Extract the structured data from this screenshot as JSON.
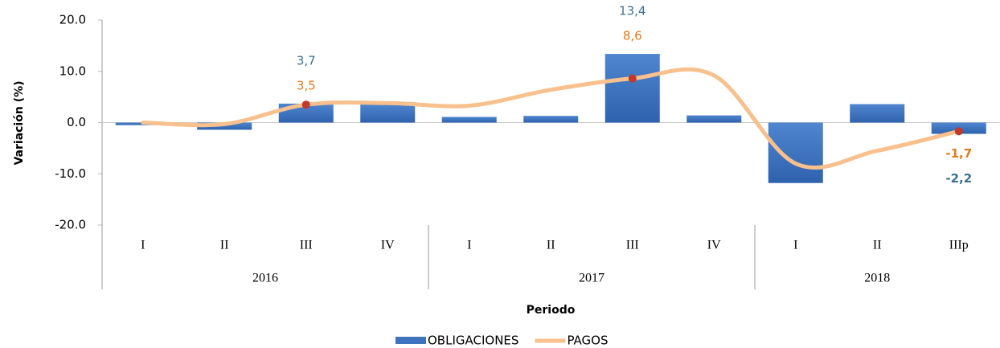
{
  "chart_data": {
    "type": "bar-line",
    "x_label": "Periodo",
    "y_label": "Variación (%)",
    "category_groups": [
      {
        "name": "2016",
        "categories": [
          "I",
          "II",
          "III",
          "IV"
        ]
      },
      {
        "name": "2017",
        "categories": [
          "I",
          "II",
          "III",
          "IV"
        ]
      },
      {
        "name": "2018",
        "categories": [
          "I",
          "II",
          "IIIp"
        ]
      }
    ],
    "series": [
      {
        "name": "OBLIGACIONES",
        "type": "bar",
        "color": "#3f73c0",
        "label_color": "#3e6f8e",
        "values": [
          -0.5,
          -1.4,
          3.7,
          3.6,
          1.1,
          1.3,
          13.4,
          1.4,
          -11.8,
          3.6,
          -2.2
        ],
        "value_labels": [
          null,
          null,
          "3,7",
          null,
          null,
          null,
          "13,4",
          null,
          null,
          null,
          "-2,2"
        ]
      },
      {
        "name": "PAGOS",
        "type": "line",
        "color": "#f8c08c",
        "label_color": "#e07b20",
        "marker_color": "#c0392b",
        "values": [
          0,
          -0.3,
          3.5,
          3.8,
          3.3,
          6.4,
          8.6,
          9.2,
          -8.0,
          -5.5,
          -1.7
        ],
        "value_labels": [
          null,
          null,
          "3,5",
          null,
          null,
          null,
          "8,6",
          null,
          null,
          null,
          "-1,7"
        ]
      }
    ],
    "ylim": [
      -20,
      20
    ],
    "yticks": [
      {
        "value": 20,
        "label": "20.0"
      },
      {
        "value": 10,
        "label": "10.0"
      },
      {
        "value": 0,
        "label": "0.0"
      },
      {
        "value": -10,
        "label": "-10.0"
      },
      {
        "value": -20,
        "label": "-20.0"
      }
    ]
  }
}
